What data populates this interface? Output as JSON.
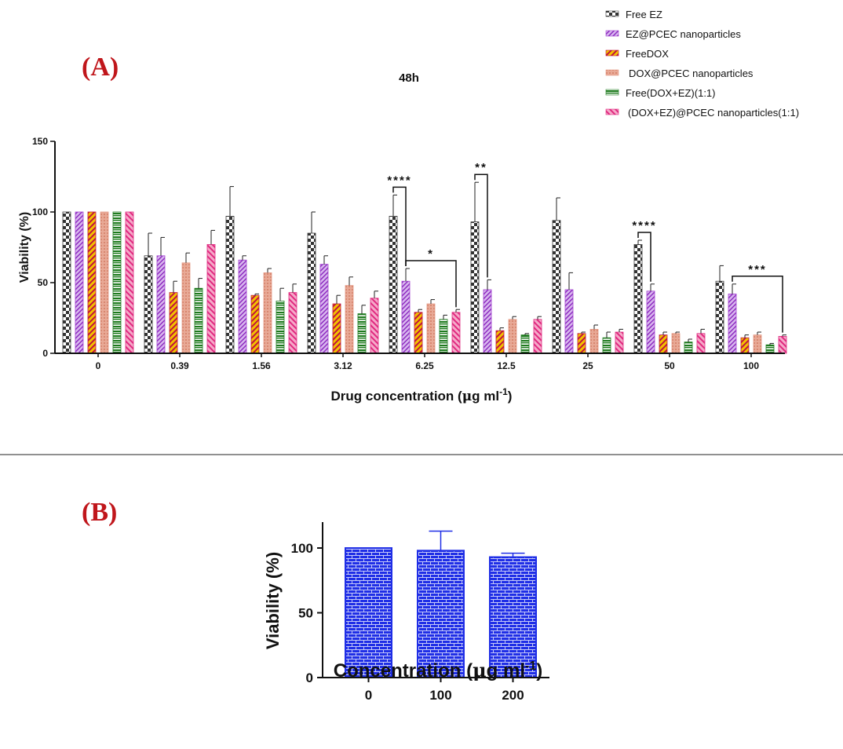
{
  "panel_a_label": "(A)",
  "panel_b_label": "(B)",
  "colors": {
    "free_ez": "#3a3a3a",
    "ez_pcec": "#a23fd0",
    "free_dox": "#c0143c",
    "dox_pcec": "#e49a86",
    "free_dox_ez": "#1e7b1e",
    "dox_ez_pcec": "#e02a80",
    "panel_label": "#c0161b",
    "bar_b": "#1f2ee6"
  },
  "chart_data": [
    {
      "type": "bar",
      "title": "48h",
      "xlabel_main": "Drug concentration (",
      "xlabel_mu": "μ",
      "xlabel_g": "g ml",
      "xlabel_sup": "-1",
      "xlabel_close": ")",
      "ylabel": "Viability (%)",
      "ylim": [
        0,
        150
      ],
      "yticks": [
        "0",
        "50",
        "100",
        "150"
      ],
      "categories": [
        "0",
        "0.39",
        "1.56",
        "3.12",
        "6.25",
        "12.5",
        "25",
        "50",
        "100"
      ],
      "series": [
        {
          "name": "Free EZ",
          "values": [
            100,
            69,
            97,
            85,
            97,
            93,
            94,
            77,
            51
          ],
          "errors": [
            0,
            16,
            21,
            15,
            15,
            28,
            16,
            3,
            11
          ]
        },
        {
          "name": "EZ@PCEC nanoparticles",
          "values": [
            100,
            69,
            66,
            63,
            51,
            45,
            45,
            44,
            42
          ],
          "errors": [
            0,
            13,
            3,
            6,
            9,
            7,
            12,
            5,
            7
          ]
        },
        {
          "name": "FreeDOX",
          "values": [
            100,
            43,
            41,
            35,
            29,
            16,
            14,
            13,
            11
          ],
          "errors": [
            0,
            8,
            1,
            6,
            2,
            2,
            1,
            2,
            2
          ]
        },
        {
          "name": "DOX@PCEC nanoparticles",
          "values": [
            100,
            64,
            57,
            48,
            35,
            24,
            17,
            14,
            13
          ],
          "errors": [
            0,
            7,
            3,
            6,
            3,
            2,
            3,
            1,
            2
          ]
        },
        {
          "name": "Free(DOX+EZ)(1:1)",
          "values": [
            100,
            46,
            37,
            28,
            24,
            13,
            11,
            8,
            6
          ],
          "errors": [
            0,
            7,
            9,
            6,
            3,
            1,
            4,
            2,
            1
          ]
        },
        {
          "name": "(DOX+EZ)@PCEC nanoparticles(1:1)",
          "values": [
            100,
            77,
            43,
            39,
            29,
            24,
            15,
            14,
            12
          ],
          "errors": [
            0,
            10,
            6,
            5,
            2,
            2,
            2,
            3,
            1
          ]
        }
      ],
      "annotations": [
        {
          "label": "****",
          "cat": 4,
          "from": 0,
          "to": 1
        },
        {
          "label": "*",
          "cat": 4,
          "from": 1,
          "to": 5
        },
        {
          "label": "**",
          "cat": 5,
          "from": 0,
          "to": 1
        },
        {
          "label": "****",
          "cat": 7,
          "from": 0,
          "to": 1
        },
        {
          "label": "***",
          "cat": 8,
          "from": 1,
          "to": 5
        }
      ]
    },
    {
      "type": "bar",
      "title": "",
      "xlabel_main": "Concentration (",
      "xlabel_mu": "μ",
      "xlabel_g": "g ml",
      "xlabel_sup": "-1",
      "xlabel_close": ")",
      "ylabel": "Viability (%)",
      "ylim": [
        0,
        120
      ],
      "yticks": [
        "0",
        "50",
        "100"
      ],
      "categories": [
        "0",
        "100",
        "200"
      ],
      "values": [
        100,
        98,
        93
      ],
      "errors": [
        0,
        15,
        3
      ]
    }
  ]
}
